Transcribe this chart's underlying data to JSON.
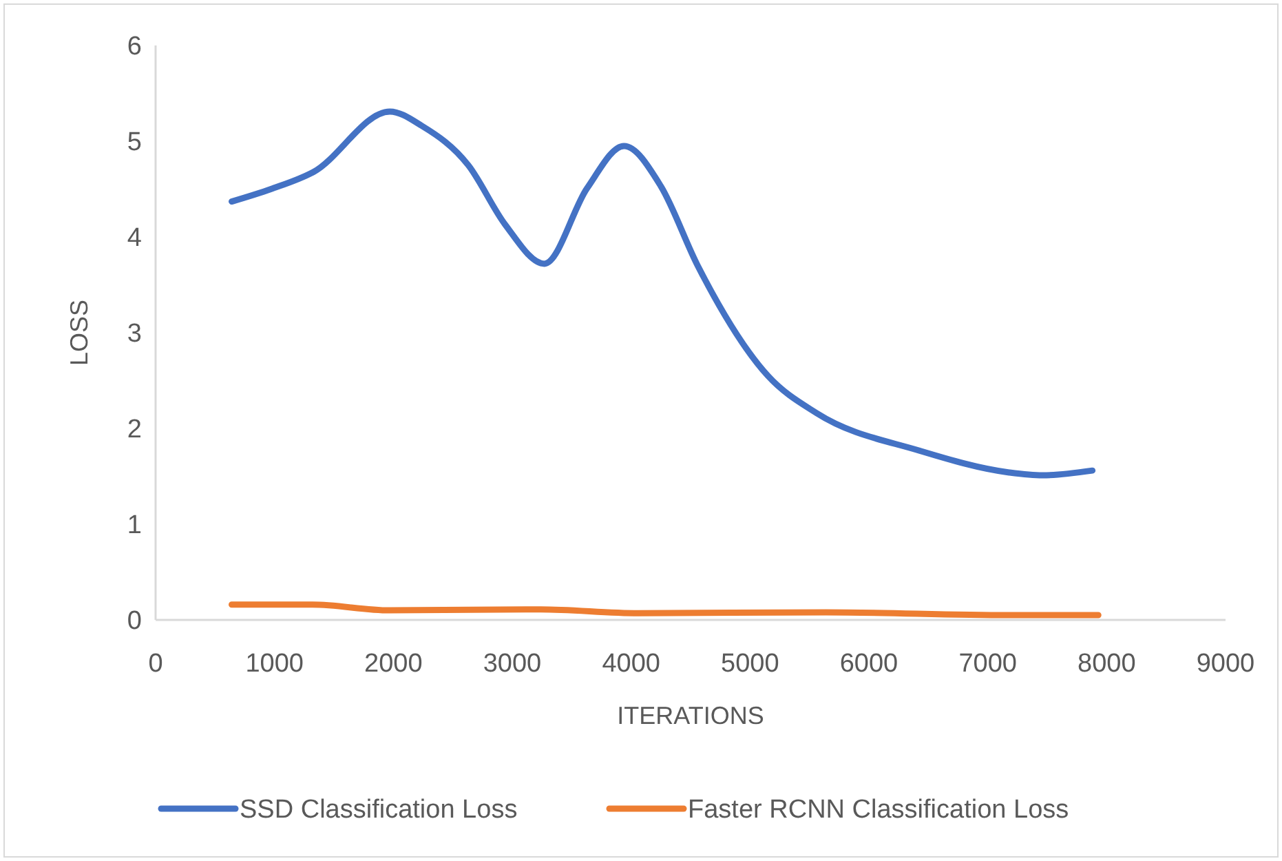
{
  "chart_data": {
    "type": "line",
    "xlabel": "ITERATIONS",
    "ylabel": "LOSS",
    "xlim": [
      0,
      9000
    ],
    "xticks": [
      0,
      1000,
      2000,
      3000,
      4000,
      5000,
      6000,
      7000,
      8000,
      9000
    ],
    "ylim": [
      0,
      6
    ],
    "yticks": [
      0,
      1,
      2,
      3,
      4,
      5,
      6
    ],
    "legend": "bottom",
    "line_style": "solid",
    "series": [
      {
        "name": "SSD Classification Loss",
        "color": "#4472c4",
        "x": [
          640,
          970,
          1330,
          1970,
          2240,
          2630,
          2940,
          3270,
          3630,
          3940,
          4250,
          4560,
          5150,
          5560,
          6420,
          7180,
          7460,
          7880
        ],
        "values": [
          4.37,
          4.5,
          4.68,
          5.31,
          5.16,
          4.75,
          4.13,
          3.72,
          4.51,
          4.95,
          4.53,
          3.7,
          2.55,
          2.16,
          1.77,
          1.54,
          1.51,
          1.56
        ]
      },
      {
        "name": "Faster RCNN Classification Loss",
        "color": "#ed7d31",
        "x": [
          640,
          1320,
          1970,
          3240,
          4060,
          5640,
          7170,
          7930
        ],
        "values": [
          0.16,
          0.16,
          0.1,
          0.11,
          0.07,
          0.08,
          0.05,
          0.05
        ]
      }
    ]
  }
}
